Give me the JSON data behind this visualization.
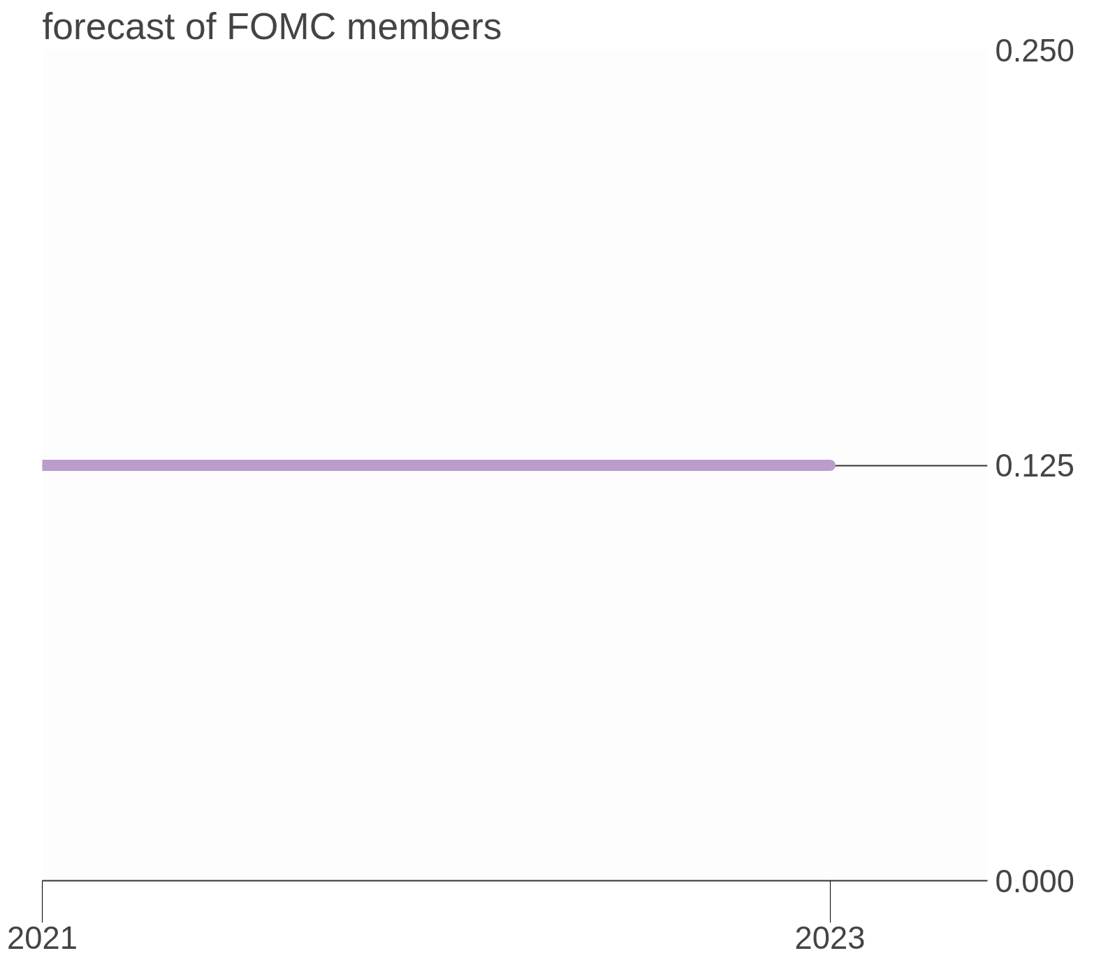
{
  "chart_data": {
    "type": "line",
    "title": "forecast of FOMC members",
    "x": [
      2021,
      2023
    ],
    "series": [
      {
        "color": "#bb9ccb",
        "values": [
          0.125,
          0.125
        ]
      }
    ],
    "xlim": [
      2021,
      2023.4
    ],
    "xticks": [
      2021,
      2023
    ],
    "ylim": [
      0,
      0.25
    ],
    "yticks": [
      {
        "value": 0,
        "label": "0.000"
      },
      0.125,
      {
        "value": 0.25,
        "label": "0.250"
      }
    ],
    "grid": "y",
    "marker": "none",
    "line_style": "solid"
  }
}
